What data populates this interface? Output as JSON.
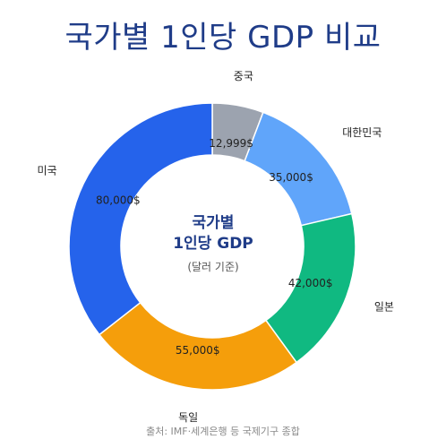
{
  "title": "국가별 1인당 GDP 비교",
  "source": "출처: IMF·세계은행 등 국제기구 종합",
  "chart_data": {
    "type": "pie",
    "donut": true,
    "center_title_line1": "국가별",
    "center_title_line2": "1인당 GDP",
    "center_subtitle": "(달러 기준)",
    "slices": [
      {
        "label": "중국",
        "value": 12999,
        "value_label": "12,999$",
        "color": "#9ca3af"
      },
      {
        "label": "대한민국",
        "value": 35000,
        "value_label": "35,000$",
        "color": "#60a5fa"
      },
      {
        "label": "일본",
        "value": 42000,
        "value_label": "42,000$",
        "color": "#10b981"
      },
      {
        "label": "독일",
        "value": 55000,
        "value_label": "55,000$",
        "color": "#f59e0b"
      },
      {
        "label": "미국",
        "value": 80000,
        "value_label": "80,000$",
        "color": "#2563eb"
      }
    ]
  }
}
